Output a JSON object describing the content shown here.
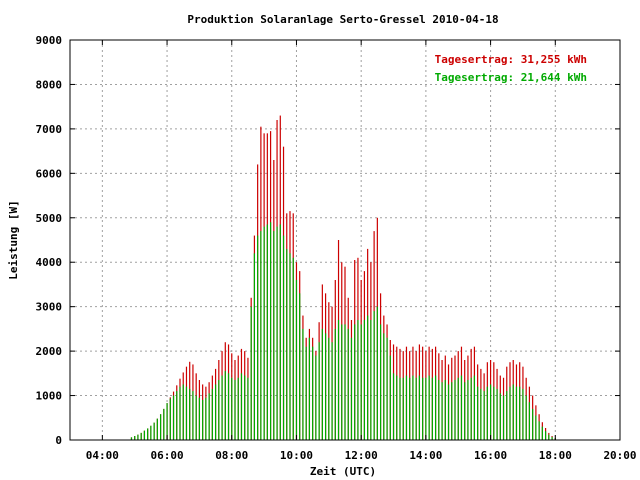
{
  "chart_data": {
    "type": "bar",
    "title": "Produktion Solaranlage Serto-Gressel 2010-04-18",
    "xlabel": "Zeit (UTC)",
    "ylabel": "Leistung [W]",
    "xlim": [
      3.0,
      20.0
    ],
    "ylim": [
      0,
      9000
    ],
    "x_ticks": [
      {
        "value": 4,
        "label": "04:00"
      },
      {
        "value": 6,
        "label": "06:00"
      },
      {
        "value": 8,
        "label": "08:00"
      },
      {
        "value": 10,
        "label": "10:00"
      },
      {
        "value": 12,
        "label": "12:00"
      },
      {
        "value": 14,
        "label": "14:00"
      },
      {
        "value": 16,
        "label": "16:00"
      },
      {
        "value": 18,
        "label": "18:00"
      },
      {
        "value": 20,
        "label": "20:00"
      }
    ],
    "y_ticks": [
      {
        "value": 0,
        "label": "0"
      },
      {
        "value": 1000,
        "label": "1000"
      },
      {
        "value": 2000,
        "label": "2000"
      },
      {
        "value": 3000,
        "label": "3000"
      },
      {
        "value": 4000,
        "label": "4000"
      },
      {
        "value": 5000,
        "label": "5000"
      },
      {
        "value": 6000,
        "label": "6000"
      },
      {
        "value": 7000,
        "label": "7000"
      },
      {
        "value": 8000,
        "label": "8000"
      },
      {
        "value": 9000,
        "label": "9000"
      }
    ],
    "grid": true,
    "legend_position": "top-right",
    "x": [
      4.9,
      5.0,
      5.1,
      5.2,
      5.3,
      5.4,
      5.5,
      5.6,
      5.7,
      5.8,
      5.9,
      6.0,
      6.1,
      6.2,
      6.3,
      6.4,
      6.5,
      6.6,
      6.7,
      6.8,
      6.9,
      7.0,
      7.1,
      7.2,
      7.3,
      7.4,
      7.5,
      7.6,
      7.7,
      7.8,
      7.9,
      8.0,
      8.1,
      8.2,
      8.3,
      8.4,
      8.5,
      8.6,
      8.7,
      8.8,
      8.9,
      9.0,
      9.1,
      9.2,
      9.3,
      9.4,
      9.5,
      9.6,
      9.7,
      9.8,
      9.9,
      10.0,
      10.1,
      10.2,
      10.3,
      10.4,
      10.5,
      10.6,
      10.7,
      10.8,
      10.9,
      11.0,
      11.1,
      11.2,
      11.3,
      11.4,
      11.5,
      11.6,
      11.7,
      11.8,
      11.9,
      12.0,
      12.1,
      12.2,
      12.3,
      12.4,
      12.5,
      12.6,
      12.7,
      12.8,
      12.9,
      13.0,
      13.1,
      13.2,
      13.3,
      13.4,
      13.5,
      13.6,
      13.7,
      13.8,
      13.9,
      14.0,
      14.1,
      14.2,
      14.3,
      14.4,
      14.5,
      14.6,
      14.7,
      14.8,
      14.9,
      15.0,
      15.1,
      15.2,
      15.3,
      15.4,
      15.5,
      15.6,
      15.7,
      15.8,
      15.9,
      16.0,
      16.1,
      16.2,
      16.3,
      16.4,
      16.5,
      16.6,
      16.7,
      16.8,
      16.9,
      17.0,
      17.1,
      17.2,
      17.3,
      17.4,
      17.5,
      17.6,
      17.7,
      17.8,
      17.9,
      18.0
    ],
    "series": [
      {
        "name": "Tagesertrag: 31,255 kWh",
        "color": "#cc0000",
        "values": [
          60,
          90,
          120,
          160,
          210,
          260,
          320,
          390,
          480,
          580,
          700,
          830,
          960,
          1090,
          1230,
          1380,
          1520,
          1650,
          1760,
          1700,
          1500,
          1350,
          1250,
          1200,
          1300,
          1450,
          1600,
          1800,
          2000,
          2200,
          2150,
          1950,
          1800,
          1900,
          2050,
          2000,
          1850,
          3200,
          4600,
          6200,
          7050,
          6900,
          6900,
          6950,
          6300,
          7200,
          7300,
          6600,
          5100,
          5150,
          5100,
          4000,
          3800,
          2800,
          2300,
          2500,
          2300,
          2000,
          2650,
          3500,
          3300,
          3100,
          3000,
          3600,
          4500,
          4000,
          3900,
          3200,
          2700,
          4050,
          4100,
          3600,
          3800,
          4300,
          4000,
          4700,
          5000,
          3300,
          2800,
          2600,
          2250,
          2150,
          2100,
          2050,
          2000,
          2100,
          2000,
          2100,
          2000,
          2150,
          2100,
          2000,
          2100,
          2050,
          2100,
          1950,
          1800,
          1900,
          1700,
          1850,
          1900,
          2000,
          2100,
          1800,
          1900,
          2050,
          2100,
          1700,
          1600,
          1500,
          1750,
          1800,
          1750,
          1600,
          1450,
          1400,
          1650,
          1750,
          1800,
          1700,
          1750,
          1650,
          1400,
          1200,
          1000,
          780,
          580,
          400,
          270,
          160,
          90,
          50
        ]
      },
      {
        "name": "Tagesertrag: 21,644 kWh",
        "color": "#00aa00",
        "values": [
          60,
          90,
          120,
          160,
          210,
          260,
          320,
          390,
          480,
          580,
          700,
          830,
          930,
          1000,
          1100,
          1200,
          1250,
          1200,
          1150,
          1100,
          1000,
          950,
          900,
          950,
          1050,
          1150,
          1250,
          1350,
          1450,
          1550,
          1500,
          1400,
          1350,
          1400,
          1500,
          1450,
          1400,
          3000,
          4200,
          4600,
          4700,
          4800,
          4850,
          4900,
          4700,
          4800,
          4850,
          4600,
          4300,
          4200,
          4100,
          3600,
          3300,
          2500,
          2100,
          2300,
          2100,
          1900,
          2200,
          2500,
          2400,
          2300,
          2200,
          2500,
          2700,
          2600,
          2600,
          2500,
          2300,
          2600,
          2700,
          2600,
          2700,
          2800,
          2700,
          2900,
          3000,
          2600,
          2400,
          2300,
          1900,
          1500,
          1450,
          1400,
          1400,
          1450,
          1400,
          1450,
          1400,
          1450,
          1400,
          1400,
          1450,
          1400,
          1450,
          1350,
          1300,
          1350,
          1250,
          1300,
          1350,
          1400,
          1450,
          1300,
          1350,
          1400,
          1450,
          1200,
          1150,
          1100,
          1200,
          1250,
          1200,
          1150,
          1050,
          1000,
          1100,
          1200,
          1250,
          1200,
          1200,
          1150,
          1000,
          850,
          700,
          550,
          420,
          300,
          200,
          120,
          70,
          40
        ]
      }
    ]
  }
}
